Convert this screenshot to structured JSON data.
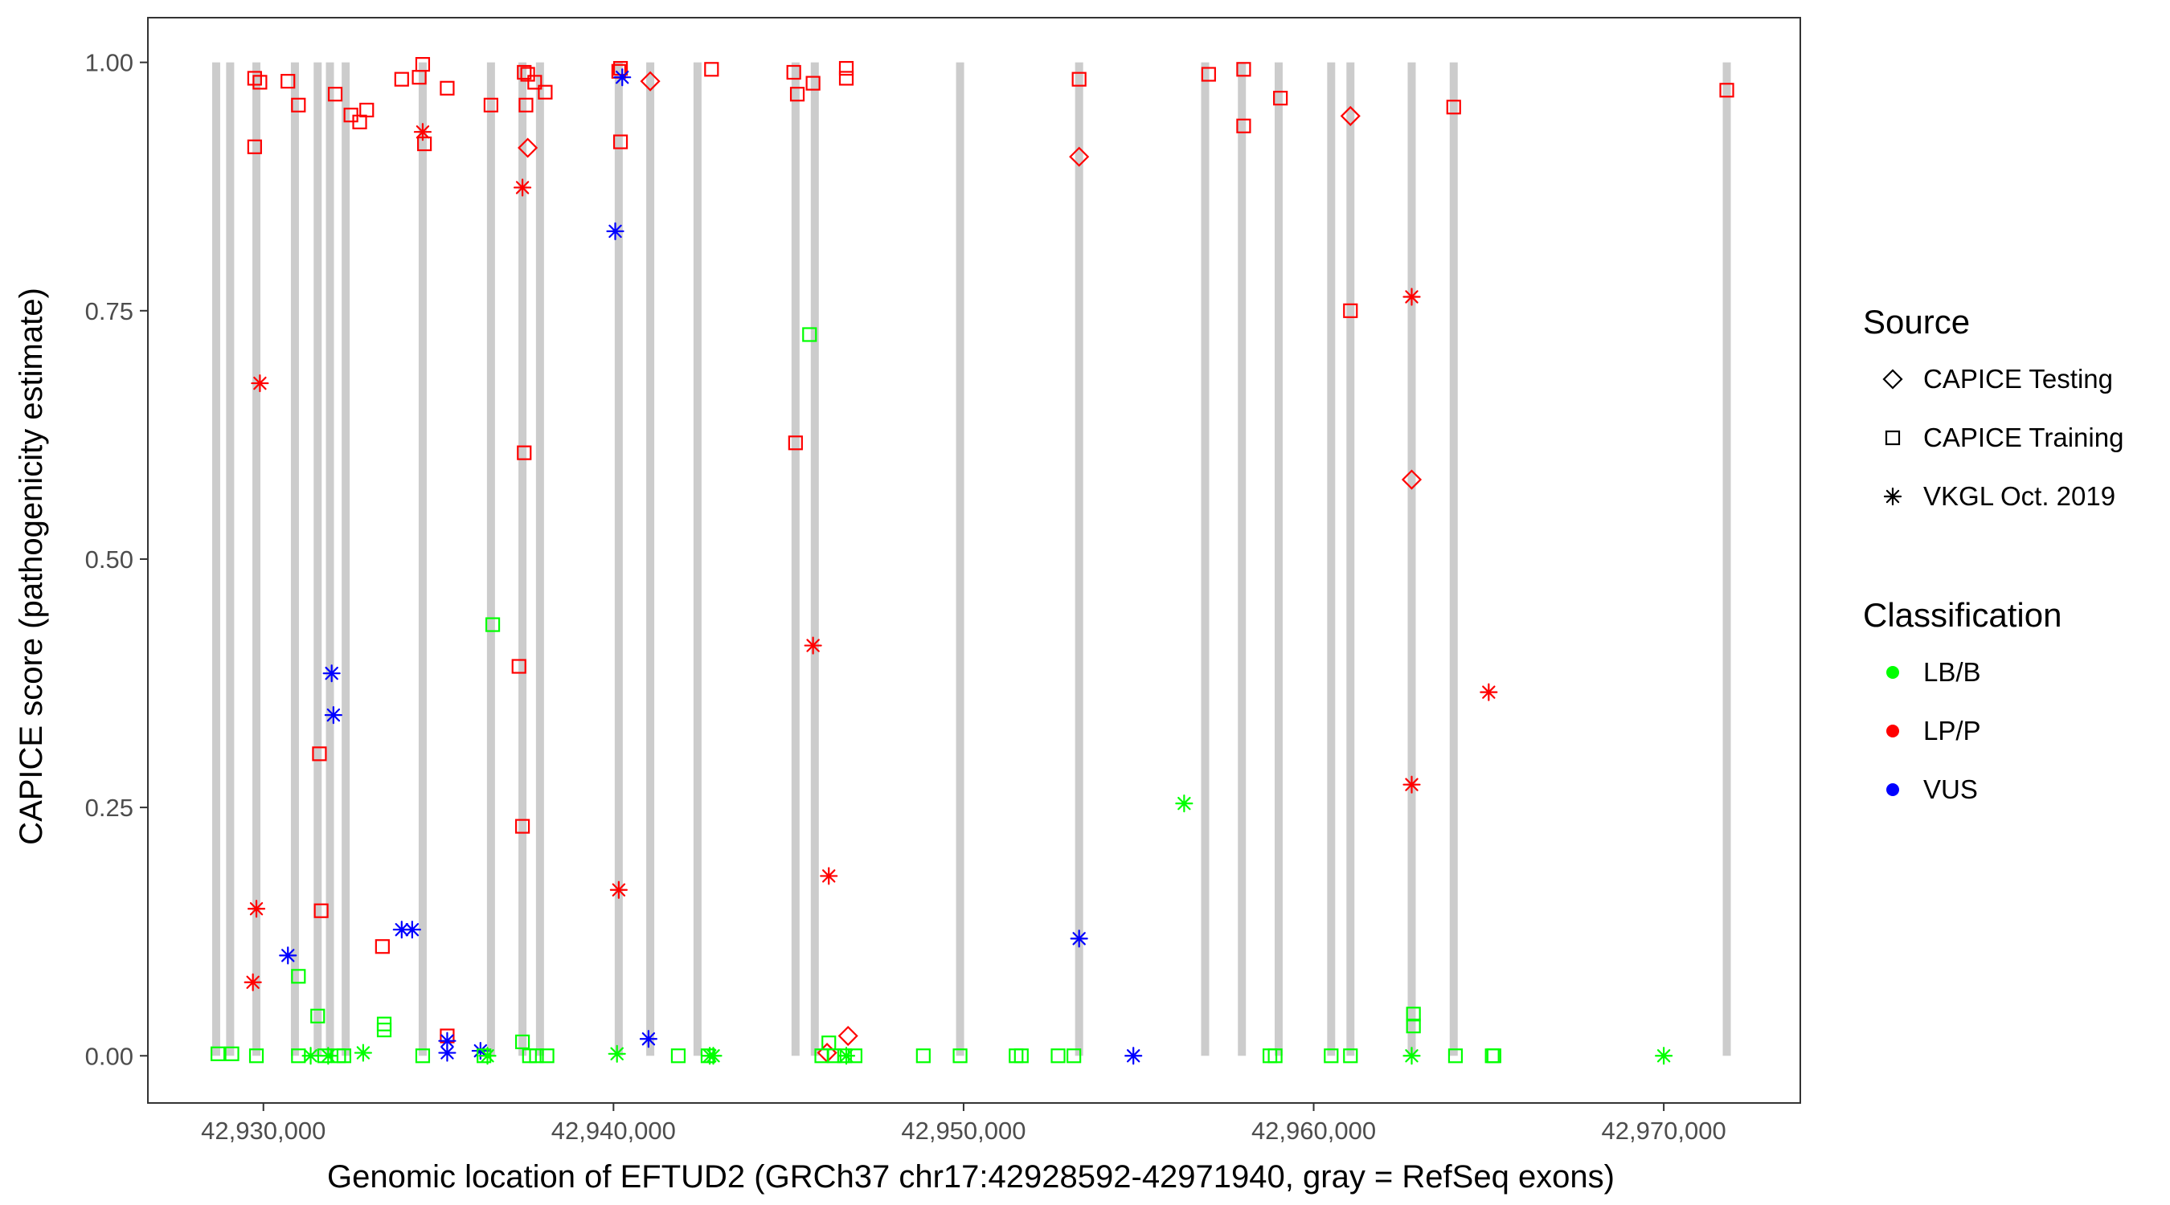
{
  "chart_data": {
    "type": "scatter",
    "title": "",
    "xlabel": "Genomic location of EFTUD2 (GRCh37 chr17:42928592-42971940, gray = RefSeq exons)",
    "ylabel": "CAPICE score (pathogenicity estimate)",
    "xlim": [
      42926700,
      42973900
    ],
    "ylim": [
      -0.0475,
      1.045
    ],
    "grid": false,
    "x_ticks": [
      42930000,
      42940000,
      42950000,
      42960000,
      42970000
    ],
    "x_tick_labels": [
      "42,930,000",
      "42,940,000",
      "42,950,000",
      "42,960,000",
      "42,970,000"
    ],
    "y_ticks": [
      0,
      0.25,
      0.5,
      0.75,
      1.0
    ],
    "y_tick_labels": [
      "0.00",
      "0.25",
      "0.50",
      "0.75",
      "1.00"
    ],
    "exon_color": "#cccccc",
    "exons": [
      42928650,
      42929050,
      42929800,
      42930900,
      42931550,
      42931900,
      42932350,
      42934550,
      42936500,
      42937400,
      42937900,
      42940150,
      42941050,
      42942400,
      42945200,
      42945750,
      42949900,
      42953300,
      42956900,
      42957950,
      42959000,
      42960500,
      42961050,
      42962800,
      42964000,
      42971800
    ],
    "legend": {
      "placement": "right",
      "source_title": "Source",
      "source_items": [
        {
          "label": "CAPICE Testing",
          "shape": "diamond"
        },
        {
          "label": "CAPICE Training",
          "shape": "square"
        },
        {
          "label": "VKGL Oct. 2019",
          "shape": "star"
        }
      ],
      "class_title": "Classification",
      "class_items": [
        {
          "label": "LB/B",
          "color": "#00ff00"
        },
        {
          "label": "LP/P",
          "color": "#ff0000"
        },
        {
          "label": "VUS",
          "color": "#0000ff"
        }
      ]
    },
    "series": [
      {
        "source": "CAPICE Training",
        "classification": "LP/P",
        "points": [
          [
            42929750,
            0.984
          ],
          [
            42929900,
            0.98
          ],
          [
            42929750,
            0.915
          ],
          [
            42930700,
            0.981
          ],
          [
            42931000,
            0.957
          ],
          [
            42932050,
            0.968
          ],
          [
            42932500,
            0.947
          ],
          [
            42932750,
            0.94
          ],
          [
            42932950,
            0.952
          ],
          [
            42933950,
            0.983
          ],
          [
            42934450,
            0.985
          ],
          [
            42934550,
            0.998
          ],
          [
            42934600,
            0.918
          ],
          [
            42935250,
            0.974
          ],
          [
            42936500,
            0.957
          ],
          [
            42937450,
            0.99
          ],
          [
            42937550,
            0.988
          ],
          [
            42937750,
            0.98
          ],
          [
            42938050,
            0.97
          ],
          [
            42937500,
            0.957
          ],
          [
            42940150,
            0.991
          ],
          [
            42940200,
            0.994
          ],
          [
            42940200,
            0.92
          ],
          [
            42942800,
            0.993
          ],
          [
            42945150,
            0.99
          ],
          [
            42945250,
            0.968
          ],
          [
            42945700,
            0.979
          ],
          [
            42946650,
            0.994
          ],
          [
            42946650,
            0.984
          ],
          [
            42953300,
            0.983
          ],
          [
            42957000,
            0.988
          ],
          [
            42958000,
            0.993
          ],
          [
            42958000,
            0.936
          ],
          [
            42959050,
            0.964
          ],
          [
            42964000,
            0.955
          ],
          [
            42971800,
            0.972
          ],
          [
            42961050,
            0.75
          ],
          [
            42937450,
            0.607
          ],
          [
            42945200,
            0.617
          ],
          [
            42937300,
            0.392
          ],
          [
            42937400,
            0.231
          ],
          [
            42931600,
            0.304
          ],
          [
            42931650,
            0.146
          ],
          [
            42933400,
            0.11
          ],
          [
            42935250,
            0.02
          ]
        ]
      },
      {
        "source": "CAPICE Testing",
        "classification": "LP/P",
        "points": [
          [
            42937550,
            0.914
          ],
          [
            42941050,
            0.981
          ],
          [
            42953300,
            0.905
          ],
          [
            42961050,
            0.946
          ],
          [
            42962800,
            0.58
          ],
          [
            42946700,
            0.02
          ],
          [
            42946100,
            0.003
          ]
        ]
      },
      {
        "source": "VKGL Oct. 2019",
        "classification": "LP/P",
        "points": [
          [
            42934550,
            0.93
          ],
          [
            42937400,
            0.874
          ],
          [
            42929900,
            0.677
          ],
          [
            42929800,
            0.148
          ],
          [
            42929700,
            0.074
          ],
          [
            42940150,
            0.167
          ],
          [
            42945700,
            0.413
          ],
          [
            42946150,
            0.181
          ],
          [
            42962800,
            0.764
          ],
          [
            42962800,
            0.273
          ],
          [
            42965000,
            0.366
          ]
        ]
      },
      {
        "source": "VKGL Oct. 2019",
        "classification": "VUS",
        "points": [
          [
            42940250,
            0.985
          ],
          [
            42940050,
            0.83
          ],
          [
            42931950,
            0.385
          ],
          [
            42932000,
            0.343
          ],
          [
            42930700,
            0.101
          ],
          [
            42933950,
            0.127
          ],
          [
            42934250,
            0.127
          ],
          [
            42935250,
            0.015
          ],
          [
            42935250,
            0.003
          ],
          [
            42936200,
            0.005
          ],
          [
            42941000,
            0.017
          ],
          [
            42953300,
            0.118
          ],
          [
            42954850,
            0.0
          ]
        ]
      },
      {
        "source": "CAPICE Training",
        "classification": "LB/B",
        "points": [
          [
            42936550,
            0.434
          ],
          [
            42945600,
            0.726
          ],
          [
            42931000,
            0.08
          ],
          [
            42931550,
            0.04
          ],
          [
            42933450,
            0.032
          ],
          [
            42933450,
            0.026
          ],
          [
            42937400,
            0.014
          ],
          [
            42962850,
            0.042
          ],
          [
            42962850,
            0.03
          ],
          [
            42946150,
            0.013
          ],
          [
            42928700,
            0.002
          ],
          [
            42929100,
            0.002
          ],
          [
            42929800,
            0.0
          ],
          [
            42931000,
            0.0
          ],
          [
            42931750,
            0.0
          ],
          [
            42932150,
            0.0
          ],
          [
            42932300,
            0.0
          ],
          [
            42934550,
            0.0
          ],
          [
            42936300,
            0.0
          ],
          [
            42937600,
            0.0
          ],
          [
            42937800,
            0.0
          ],
          [
            42938100,
            0.0
          ],
          [
            42941850,
            0.0
          ],
          [
            42942700,
            0.0
          ],
          [
            42945950,
            0.0
          ],
          [
            42946300,
            0.0
          ],
          [
            42946600,
            0.0
          ],
          [
            42946900,
            0.0
          ],
          [
            42948850,
            0.0
          ],
          [
            42949900,
            0.0
          ],
          [
            42951500,
            0.0
          ],
          [
            42951650,
            0.0
          ],
          [
            42952700,
            0.0
          ],
          [
            42953150,
            0.0
          ],
          [
            42958750,
            0.0
          ],
          [
            42958900,
            0.0
          ],
          [
            42960500,
            0.0
          ],
          [
            42961050,
            0.0
          ],
          [
            42964050,
            0.0
          ],
          [
            42965100,
            0.0
          ],
          [
            42965150,
            0.0
          ]
        ]
      },
      {
        "source": "VKGL Oct. 2019",
        "classification": "LB/B",
        "points": [
          [
            42931350,
            0.0
          ],
          [
            42931850,
            0.0
          ],
          [
            42932850,
            0.003
          ],
          [
            42936400,
            0.0
          ],
          [
            42940100,
            0.002
          ],
          [
            42942750,
            0.0
          ],
          [
            42942850,
            0.0
          ],
          [
            42946650,
            0.0
          ],
          [
            42956300,
            0.254
          ],
          [
            42962800,
            0.0
          ],
          [
            42970000,
            0.0
          ]
        ]
      }
    ]
  }
}
